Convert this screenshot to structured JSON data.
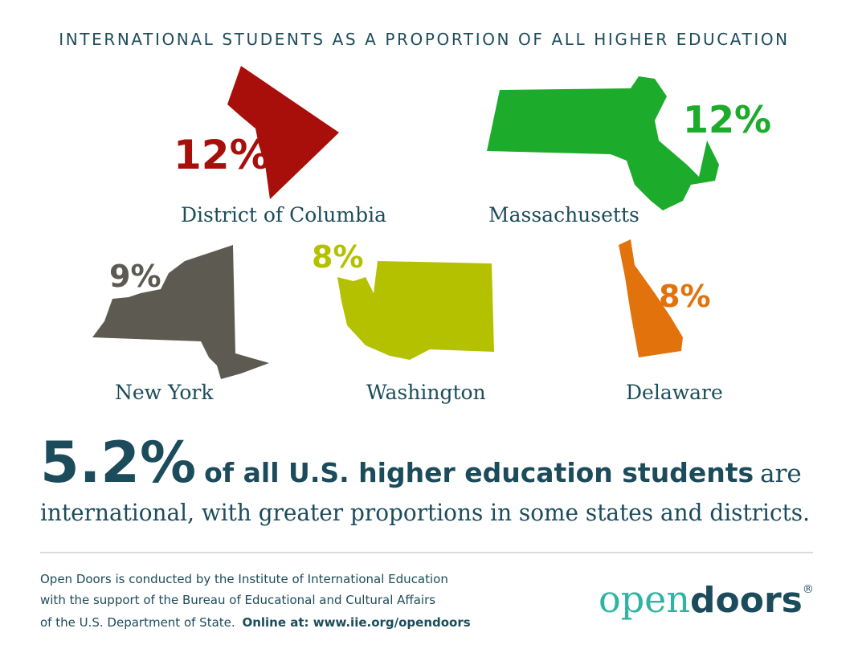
{
  "title": "INTERNATIONAL STUDENTS AS A PROPORTION OF ALL HIGHER EDUCATION",
  "states": [
    {
      "name": "District of Columbia",
      "percent": "12%",
      "color": "#a80f0b"
    },
    {
      "name": "Massachusetts",
      "percent": "12%",
      "color": "#1cab2b"
    },
    {
      "name": "New York",
      "percent": "9%",
      "color": "#5c5a51"
    },
    {
      "name": "Washington",
      "percent": "8%",
      "color": "#b4c100"
    },
    {
      "name": "Delaware",
      "percent": "8%",
      "color": "#e2720c"
    }
  ],
  "headline": {
    "figure": "5.2%",
    "bold": "of all U.S. higher education students",
    "tail": "are",
    "line2": "international, with greater proportions in some states and districts."
  },
  "footer": {
    "line1": "Open Doors is conducted by the Institute of International Education",
    "line2": "with the support of the Bureau of Educational and Cultural Affairs",
    "line3": "of the U.S. Department of State.",
    "link": "Online at: www.iie.org/opendoors"
  },
  "logo": {
    "open": "open",
    "doors": "doors",
    "mark": "®"
  }
}
